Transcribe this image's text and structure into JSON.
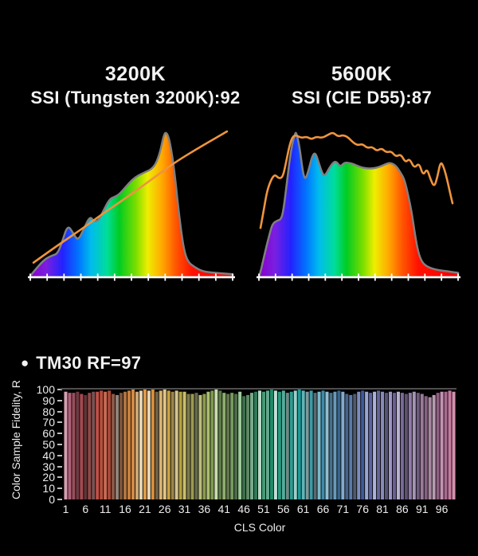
{
  "style": {
    "background": "#000000",
    "text_color": "#f2f2f2",
    "axis_color": "#ffffff",
    "curve_outline_color": "#808080",
    "reference_line_color": "#ef943d",
    "gridline_color": "#4e4e4e",
    "spectrum_stops": [
      [
        "0%",
        "#8800cc"
      ],
      [
        "8%",
        "#7a1fe0"
      ],
      [
        "16%",
        "#2222ff"
      ],
      [
        "24%",
        "#0077ff"
      ],
      [
        "30%",
        "#00bbee"
      ],
      [
        "38%",
        "#00dd99"
      ],
      [
        "44%",
        "#00cc22"
      ],
      [
        "52%",
        "#77dd00"
      ],
      [
        "58%",
        "#eeee00"
      ],
      [
        "65%",
        "#ffaa00"
      ],
      [
        "72%",
        "#ff5500"
      ],
      [
        "80%",
        "#ff1100"
      ],
      [
        "100%",
        "#ff0000"
      ]
    ]
  },
  "ui": {
    "bullet": "●"
  },
  "chart_data": [
    {
      "type": "area",
      "title": "3200K",
      "subtitle": "SSI (Tungsten 3200K):92",
      "ssi_value": 92,
      "reference_name": "Tungsten 3200K",
      "x_axis": {
        "label": "",
        "tick_count": 13,
        "note": "wavelength axis, unlabeled ticks"
      },
      "fill": "visible-spectrum-gradient",
      "curve_norm": [
        [
          0,
          0.01
        ],
        [
          0.03,
          0.06
        ],
        [
          0.055,
          0.1
        ],
        [
          0.08,
          0.13
        ],
        [
          0.11,
          0.15
        ],
        [
          0.134,
          0.16
        ],
        [
          0.157,
          0.24
        ],
        [
          0.185,
          0.36
        ],
        [
          0.213,
          0.3
        ],
        [
          0.236,
          0.25
        ],
        [
          0.264,
          0.33
        ],
        [
          0.295,
          0.42
        ],
        [
          0.315,
          0.38
        ],
        [
          0.339,
          0.39
        ],
        [
          0.366,
          0.47
        ],
        [
          0.394,
          0.54
        ],
        [
          0.417,
          0.55
        ],
        [
          0.441,
          0.57
        ],
        [
          0.472,
          0.62
        ],
        [
          0.504,
          0.67
        ],
        [
          0.535,
          0.7
        ],
        [
          0.567,
          0.72
        ],
        [
          0.598,
          0.74
        ],
        [
          0.622,
          0.78
        ],
        [
          0.642,
          0.86
        ],
        [
          0.657,
          0.96
        ],
        [
          0.669,
          1.0
        ],
        [
          0.685,
          0.96
        ],
        [
          0.701,
          0.84
        ],
        [
          0.717,
          0.67
        ],
        [
          0.732,
          0.47
        ],
        [
          0.748,
          0.29
        ],
        [
          0.764,
          0.16
        ],
        [
          0.783,
          0.1
        ],
        [
          0.811,
          0.07
        ],
        [
          0.85,
          0.04
        ],
        [
          0.913,
          0.03
        ],
        [
          1.0,
          0.02
        ]
      ],
      "reference_norm": [
        [
          0.016,
          0.1
        ],
        [
          0.126,
          0.21
        ],
        [
          0.244,
          0.32
        ],
        [
          0.362,
          0.44
        ],
        [
          0.48,
          0.55
        ],
        [
          0.598,
          0.67
        ],
        [
          0.717,
          0.79
        ],
        [
          0.835,
          0.89
        ],
        [
          0.972,
          1.0
        ]
      ]
    },
    {
      "type": "area",
      "title": "5600K",
      "subtitle": "SSI (CIE D55):87",
      "ssi_value": 87,
      "reference_name": "CIE D55",
      "x_axis": {
        "label": "",
        "tick_count": 13,
        "note": "wavelength axis, unlabeled ticks"
      },
      "fill": "visible-spectrum-gradient",
      "curve_norm": [
        [
          0.012,
          0.06
        ],
        [
          0.032,
          0.18
        ],
        [
          0.052,
          0.29
        ],
        [
          0.068,
          0.37
        ],
        [
          0.092,
          0.39
        ],
        [
          0.112,
          0.4
        ],
        [
          0.124,
          0.47
        ],
        [
          0.14,
          0.65
        ],
        [
          0.16,
          0.87
        ],
        [
          0.18,
          0.99
        ],
        [
          0.188,
          1.0
        ],
        [
          0.204,
          0.9
        ],
        [
          0.22,
          0.73
        ],
        [
          0.232,
          0.67
        ],
        [
          0.248,
          0.73
        ],
        [
          0.268,
          0.84
        ],
        [
          0.284,
          0.86
        ],
        [
          0.3,
          0.79
        ],
        [
          0.32,
          0.71
        ],
        [
          0.332,
          0.7
        ],
        [
          0.352,
          0.75
        ],
        [
          0.372,
          0.79
        ],
        [
          0.388,
          0.8
        ],
        [
          0.408,
          0.76
        ],
        [
          0.428,
          0.79
        ],
        [
          0.448,
          0.79
        ],
        [
          0.476,
          0.78
        ],
        [
          0.508,
          0.76
        ],
        [
          0.54,
          0.75
        ],
        [
          0.572,
          0.75
        ],
        [
          0.604,
          0.76
        ],
        [
          0.636,
          0.78
        ],
        [
          0.66,
          0.79
        ],
        [
          0.688,
          0.77
        ],
        [
          0.712,
          0.72
        ],
        [
          0.732,
          0.67
        ],
        [
          0.752,
          0.55
        ],
        [
          0.768,
          0.44
        ],
        [
          0.784,
          0.29
        ],
        [
          0.8,
          0.17
        ],
        [
          0.82,
          0.1
        ],
        [
          0.848,
          0.07
        ],
        [
          0.892,
          0.05
        ],
        [
          0.948,
          0.04
        ],
        [
          1.0,
          0.03
        ]
      ],
      "reference_norm": [
        [
          0.008,
          0.34
        ],
        [
          0.024,
          0.46
        ],
        [
          0.04,
          0.59
        ],
        [
          0.06,
          0.67
        ],
        [
          0.08,
          0.71
        ],
        [
          0.1,
          0.68
        ],
        [
          0.12,
          0.69
        ],
        [
          0.136,
          0.79
        ],
        [
          0.152,
          0.9
        ],
        [
          0.168,
          0.97
        ],
        [
          0.188,
          0.98
        ],
        [
          0.212,
          0.96
        ],
        [
          0.24,
          0.97
        ],
        [
          0.264,
          0.95
        ],
        [
          0.288,
          0.97
        ],
        [
          0.316,
          0.96
        ],
        [
          0.344,
          0.98
        ],
        [
          0.372,
          1.0
        ],
        [
          0.396,
          0.97
        ],
        [
          0.42,
          0.98
        ],
        [
          0.444,
          0.97
        ],
        [
          0.472,
          0.93
        ],
        [
          0.496,
          0.91
        ],
        [
          0.52,
          0.92
        ],
        [
          0.544,
          0.89
        ],
        [
          0.568,
          0.9
        ],
        [
          0.592,
          0.87
        ],
        [
          0.616,
          0.89
        ],
        [
          0.64,
          0.86
        ],
        [
          0.664,
          0.87
        ],
        [
          0.688,
          0.83
        ],
        [
          0.712,
          0.85
        ],
        [
          0.736,
          0.79
        ],
        [
          0.756,
          0.82
        ],
        [
          0.78,
          0.75
        ],
        [
          0.804,
          0.79
        ],
        [
          0.824,
          0.7
        ],
        [
          0.844,
          0.75
        ],
        [
          0.86,
          0.68
        ],
        [
          0.88,
          0.62
        ],
        [
          0.896,
          0.69
        ],
        [
          0.912,
          0.8
        ],
        [
          0.928,
          0.76
        ],
        [
          0.944,
          0.68
        ],
        [
          0.96,
          0.58
        ],
        [
          0.972,
          0.51
        ]
      ]
    },
    {
      "type": "bar",
      "title": "TM30 RF=97",
      "rf_value": 97,
      "xlabel": "CLS Color",
      "ylabel": "Color Sample Fidelity, R",
      "ylim": [
        0,
        100
      ],
      "yticks": [
        0,
        10,
        20,
        30,
        40,
        50,
        60,
        70,
        80,
        90,
        100
      ],
      "xticks": [
        1,
        6,
        11,
        16,
        21,
        26,
        31,
        36,
        41,
        46,
        51,
        56,
        61,
        66,
        71,
        76,
        81,
        86,
        91,
        96
      ],
      "n_bars": 99,
      "reference_line": 100,
      "values": [
        98,
        97,
        97,
        98,
        96,
        95,
        97,
        98,
        98,
        99,
        98,
        99,
        96,
        95,
        97,
        98,
        99,
        100,
        98,
        99,
        100,
        99,
        100,
        98,
        99,
        100,
        99,
        98,
        99,
        98,
        98,
        96,
        96,
        97,
        95,
        96,
        98,
        99,
        100,
        99,
        97,
        96,
        97,
        96,
        98,
        94,
        95,
        97,
        98,
        99,
        98,
        99,
        100,
        99,
        98,
        99,
        97,
        98,
        99,
        100,
        99,
        98,
        99,
        97,
        98,
        99,
        98,
        97,
        98,
        99,
        98,
        96,
        95,
        96,
        98,
        99,
        98,
        97,
        98,
        99,
        98,
        97,
        98,
        97,
        98,
        97,
        96,
        97,
        98,
        97,
        96,
        94,
        93,
        95,
        97,
        98,
        98,
        99,
        98
      ],
      "bar_colors": [
        "#d29fb0",
        "#b26179",
        "#96505c",
        "#6f3a41",
        "#a34a50",
        "#5e3537",
        "#8e4a49",
        "#7a5150",
        "#c05048",
        "#b5503c",
        "#c96a55",
        "#a94a38",
        "#8a5a48",
        "#93847a",
        "#7c543b",
        "#b07440",
        "#c87f3e",
        "#d08a45",
        "#c9a878",
        "#e3d4b4",
        "#df9b4a",
        "#e5d6b6",
        "#d98f3d",
        "#6f6349",
        "#d9b370",
        "#e0c48a",
        "#caa23f",
        "#99854e",
        "#d4c490",
        "#b5a23f",
        "#c9bd6e",
        "#7b7a4a",
        "#9b9a52",
        "#666a4e",
        "#b9bd7a",
        "#8e9a50",
        "#a9bd72",
        "#7f9b4e",
        "#cadbb0",
        "#5d7a45",
        "#8fae6d",
        "#62744f",
        "#769a5f",
        "#4e6a4b",
        "#9ec99a",
        "#3f6e4c",
        "#5d8a64",
        "#7aa98a",
        "#2f7a57",
        "#bcd9c8",
        "#459a77",
        "#63a98e",
        "#1f8a6a",
        "#bfe0d6",
        "#2a9a80",
        "#53ae9b",
        "#6b8a84",
        "#2f9a90",
        "#9ccfc9",
        "#1f9a99",
        "#5fb5b8",
        "#7a9a9d",
        "#3e9aa5",
        "#586a70",
        "#79b9cc",
        "#3f8aa8",
        "#95bccf",
        "#45708a",
        "#6a99b9",
        "#33678e",
        "#88a9c9",
        "#47638a",
        "#5a7aa8",
        "#54596a",
        "#7a8ec0",
        "#3f5a99",
        "#9aa8cf",
        "#5a64a8",
        "#aeb3d9",
        "#63659a",
        "#8a8ab9",
        "#565377",
        "#9d95c4",
        "#6a5f94",
        "#b7b0cf",
        "#7a6a9a",
        "#5c5270",
        "#8f7aa8",
        "#a394b4",
        "#6e5a7e",
        "#9a7a99",
        "#84627f",
        "#a886a0",
        "#b59ab0",
        "#8f5e80",
        "#c492b2",
        "#a86a90",
        "#c77ba0",
        "#d490ae"
      ]
    }
  ]
}
